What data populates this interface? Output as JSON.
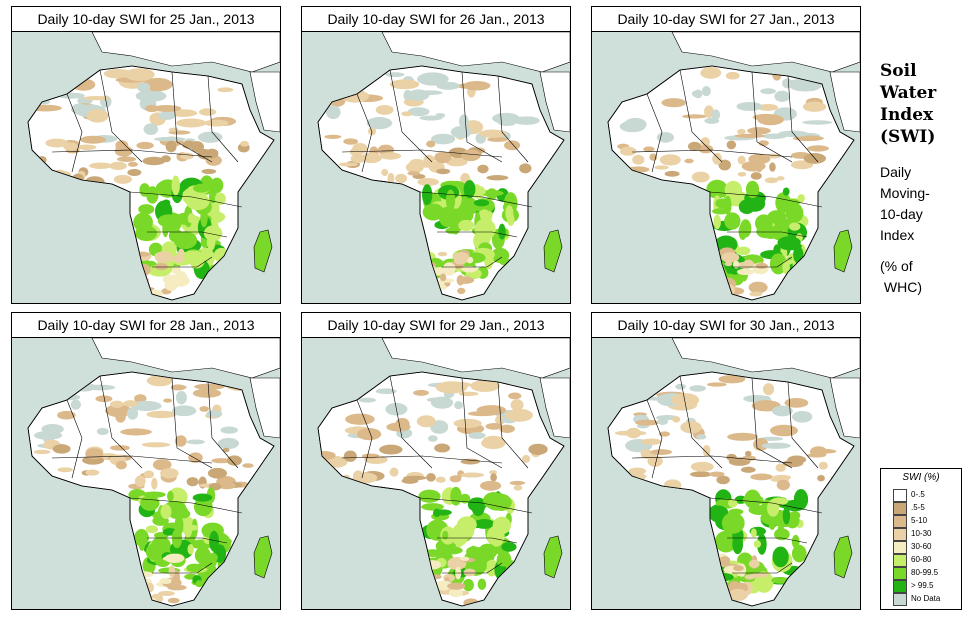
{
  "panels": [
    {
      "title": "Daily 10-day SWI for  25 Jan., 2013",
      "wet_seed": 1
    },
    {
      "title": "Daily 10-day SWI for  26 Jan., 2013",
      "wet_seed": 2
    },
    {
      "title": "Daily 10-day SWI for  27 Jan., 2013",
      "wet_seed": 3
    },
    {
      "title": "Daily 10-day SWI for  28 Jan., 2013",
      "wet_seed": 4
    },
    {
      "title": "Daily 10-day SWI for  29 Jan., 2013",
      "wet_seed": 5
    },
    {
      "title": "Daily 10-day SWI for  30 Jan., 2013",
      "wet_seed": 6
    }
  ],
  "side": {
    "title_lines": [
      "Soil",
      "Water",
      "Index",
      "(SWI)"
    ],
    "desc_lines": [
      "Daily",
      "Moving-",
      "10-day",
      "Index"
    ],
    "unit_lines": [
      "(% of",
      " WHC)"
    ]
  },
  "legend": {
    "title": "SWI (%)",
    "items": [
      {
        "label": "0-.5",
        "color": "#ffffff"
      },
      {
        "label": ".5-5",
        "color": "#c9a777"
      },
      {
        "label": "5-10",
        "color": "#dcb98a"
      },
      {
        "label": "10-30",
        "color": "#ead2a6"
      },
      {
        "label": "30-60",
        "color": "#f5ecc2"
      },
      {
        "label": "60-80",
        "color": "#c6ee6a"
      },
      {
        "label": "80-99.5",
        "color": "#7ad828"
      },
      {
        "label": "> 99.5",
        "color": "#22b414"
      },
      {
        "label": "No Data",
        "color": "#c8d8d2"
      }
    ]
  },
  "colors": {
    "ocean": "#cfe0da",
    "land": "#ffffff",
    "border": "#000000"
  }
}
